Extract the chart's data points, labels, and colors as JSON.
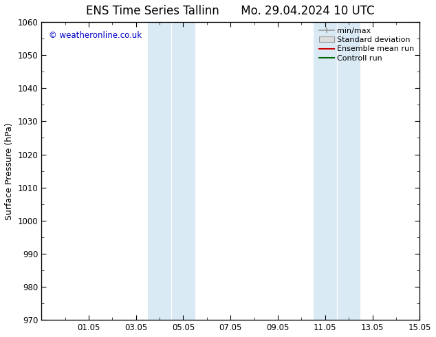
{
  "title_left": "ENS Time Series Tallinn",
  "title_right": "Mo. 29.04.2024 10 UTC",
  "ylabel": "Surface Pressure (hPa)",
  "ylim": [
    970,
    1060
  ],
  "yticks": [
    970,
    980,
    990,
    1000,
    1010,
    1020,
    1030,
    1040,
    1050,
    1060
  ],
  "xlim": [
    0,
    16
  ],
  "xtick_positions": [
    2,
    4,
    6,
    8,
    10,
    12,
    14,
    16
  ],
  "xtick_labels": [
    "01.05",
    "03.05",
    "05.05",
    "07.05",
    "09.05",
    "11.05",
    "13.05",
    "15.05"
  ],
  "shaded_bands": [
    {
      "x_start": 4.5,
      "x_end": 5.5,
      "color": "#daeaf5"
    },
    {
      "x_start": 5.5,
      "x_end": 6.5,
      "color": "#daeaf5"
    },
    {
      "x_start": 11.5,
      "x_end": 12.5,
      "color": "#daeaf5"
    },
    {
      "x_start": 12.5,
      "x_end": 13.5,
      "color": "#daeaf5"
    }
  ],
  "legend_entries": [
    {
      "label": "min/max",
      "type": "minmax"
    },
    {
      "label": "Standard deviation",
      "type": "stddev"
    },
    {
      "label": "Ensemble mean run",
      "type": "line",
      "color": "#cc0000"
    },
    {
      "label": "Controll run",
      "type": "line",
      "color": "#006600"
    }
  ],
  "watermark": "© weatheronline.co.uk",
  "watermark_color": "#0000cc",
  "background_color": "#ffffff",
  "plot_bg_color": "#ffffff",
  "title_fontsize": 12,
  "axis_label_fontsize": 9,
  "tick_fontsize": 8.5,
  "legend_fontsize": 8
}
